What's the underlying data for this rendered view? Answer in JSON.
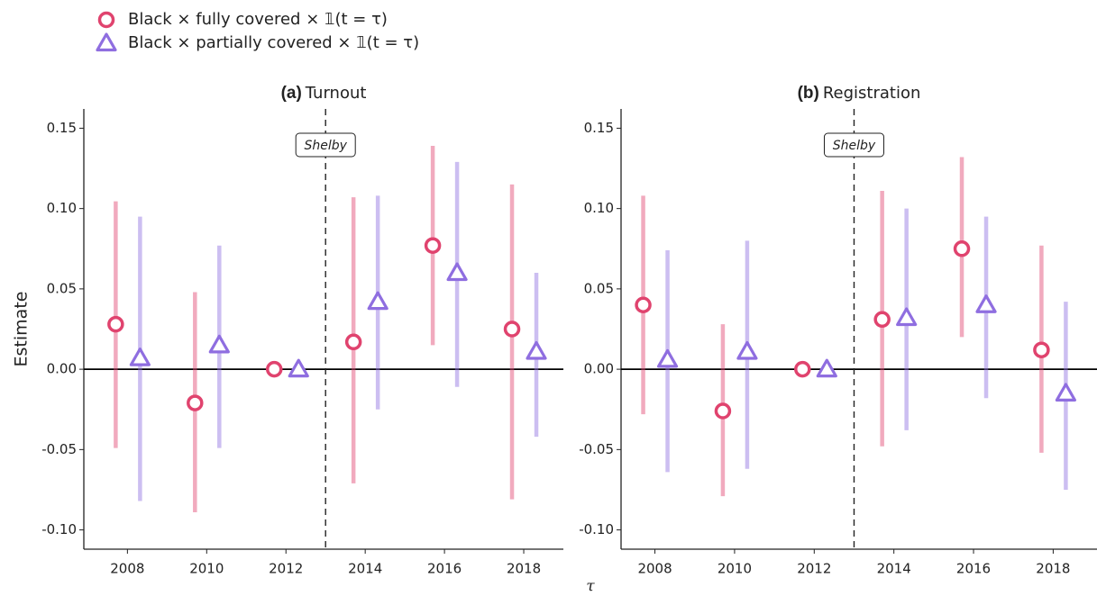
{
  "chart_data": [
    {
      "type": "errorbar",
      "panel": "(a)",
      "title": "Turnout",
      "ylabel": "Estimate",
      "xlabel": "τ",
      "x": [
        2008,
        2010,
        2012,
        2014,
        2016,
        2018
      ],
      "xlim": [
        2006.9,
        2019
      ],
      "xticks": [
        2008,
        2010,
        2012,
        2014,
        2016,
        2018
      ],
      "ylim": [
        -0.112,
        0.162
      ],
      "yticks": [
        0.15,
        {
          "value": 0.1,
          "label": "0.10"
        },
        0.05,
        {
          "value": 0,
          "label": "0.00"
        },
        -0.05,
        {
          "value": -0.1,
          "label": "-0.10"
        }
      ],
      "hline": 0,
      "vline": 2013,
      "vline_label": "Shelby",
      "series": [
        {
          "name": "Black × fully covered × 𝟙(t = τ)",
          "color": "#e0436e",
          "marker": "circle",
          "values": [
            0.028,
            -0.021,
            0,
            0.017,
            0.077,
            0.025
          ],
          "lower": [
            -0.049,
            -0.089,
            null,
            -0.071,
            0.015,
            -0.081
          ],
          "upper": [
            0.1045,
            0.048,
            null,
            0.107,
            0.139,
            0.115
          ]
        },
        {
          "name": "Black × partially covered × 𝟙(t = τ)",
          "color": "#8f6ee0",
          "marker": "triangle",
          "values": [
            0.007,
            0.015,
            0,
            0.042,
            0.06,
            0.011
          ],
          "lower": [
            -0.082,
            -0.049,
            null,
            -0.025,
            -0.011,
            -0.042
          ],
          "upper": [
            0.095,
            0.077,
            null,
            0.108,
            0.129,
            0.06
          ]
        }
      ]
    },
    {
      "type": "errorbar",
      "panel": "(b)",
      "title": "Registration",
      "x": [
        2008,
        2010,
        2012,
        2014,
        2016,
        2018
      ],
      "xlim": [
        2007.15,
        2019.1
      ],
      "xticks": [
        2008,
        2010,
        2012,
        2014,
        2016,
        2018
      ],
      "ylim": [
        -0.112,
        0.162
      ],
      "yticks": [
        0.15,
        {
          "value": 0.1,
          "label": "0.10"
        },
        0.05,
        {
          "value": 0,
          "label": "0.00"
        },
        -0.05,
        {
          "value": -0.1,
          "label": "-0.10"
        }
      ],
      "hline": 0,
      "vline": 2013,
      "vline_label": "Shelby",
      "series": [
        {
          "color": "#e0436e",
          "marker": "circle",
          "values": [
            0.04,
            -0.026,
            0,
            0.031,
            0.075,
            0.012
          ],
          "lower": [
            -0.028,
            -0.079,
            null,
            -0.048,
            0.02,
            -0.052
          ],
          "upper": [
            0.108,
            0.028,
            null,
            0.111,
            0.132,
            0.077
          ]
        },
        {
          "color": "#8f6ee0",
          "marker": "triangle",
          "values": [
            0.006,
            0.011,
            0,
            0.032,
            0.04,
            -0.015
          ],
          "lower": [
            -0.064,
            -0.062,
            null,
            -0.038,
            -0.018,
            -0.075
          ],
          "upper": [
            0.074,
            0.08,
            null,
            0.1,
            0.095,
            0.042
          ]
        }
      ]
    }
  ]
}
